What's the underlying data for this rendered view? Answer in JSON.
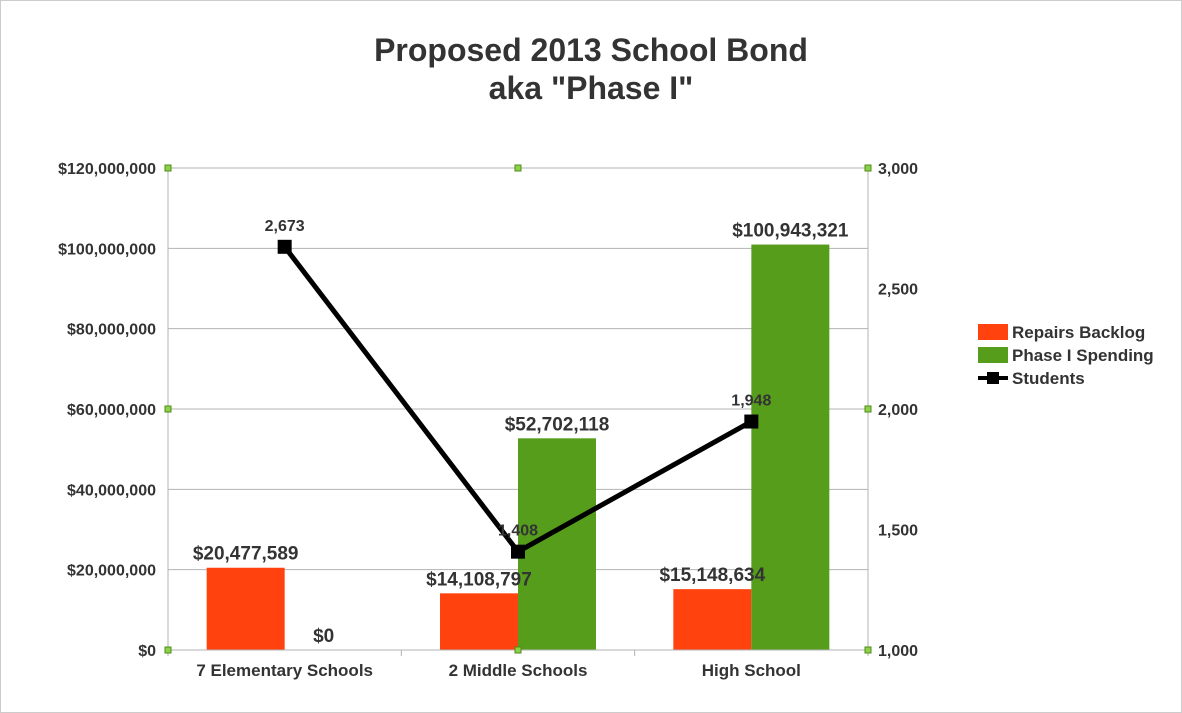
{
  "chart_data": {
    "type": "bar",
    "title": "Proposed 2013 School Bond",
    "subtitle": "aka \"Phase I\"",
    "categories": [
      "7 Elementary Schools",
      "2 Middle Schools",
      "High School"
    ],
    "series": [
      {
        "name": "Repairs Backlog",
        "type": "bar",
        "axis": "left",
        "color": "#ff420e",
        "values": [
          20477589,
          14108797,
          15148634
        ],
        "labels": [
          "$20,477,589",
          "$14,108,797",
          "$15,148,634"
        ]
      },
      {
        "name": "Phase I Spending",
        "type": "bar",
        "axis": "left",
        "color": "#579d1c",
        "values": [
          0,
          52702118,
          100943321
        ],
        "labels": [
          "$0",
          "$52,702,118",
          "$100,943,321"
        ]
      },
      {
        "name": "Students",
        "type": "line",
        "axis": "right",
        "color": "#000000",
        "values": [
          2673,
          1408,
          1948
        ],
        "labels": [
          "2,673",
          "1,408",
          "1,948"
        ]
      }
    ],
    "y_left": {
      "ylim": [
        0,
        120000000
      ],
      "ticks": [
        0,
        20000000,
        40000000,
        60000000,
        80000000,
        100000000,
        120000000
      ],
      "tick_labels": [
        "$0",
        "$20,000,000",
        "$40,000,000",
        "$60,000,000",
        "$80,000,000",
        "$100,000,000",
        "$120,000,000"
      ]
    },
    "y_right": {
      "ylim": [
        1000,
        3000
      ],
      "ticks": [
        1000,
        1500,
        2000,
        2500,
        3000
      ],
      "tick_labels": [
        "1,000",
        "1,500",
        "2,000",
        "2,500",
        "3,000"
      ]
    },
    "xlabel": "",
    "ylabel": "",
    "grid": true,
    "legend_position": "right"
  }
}
